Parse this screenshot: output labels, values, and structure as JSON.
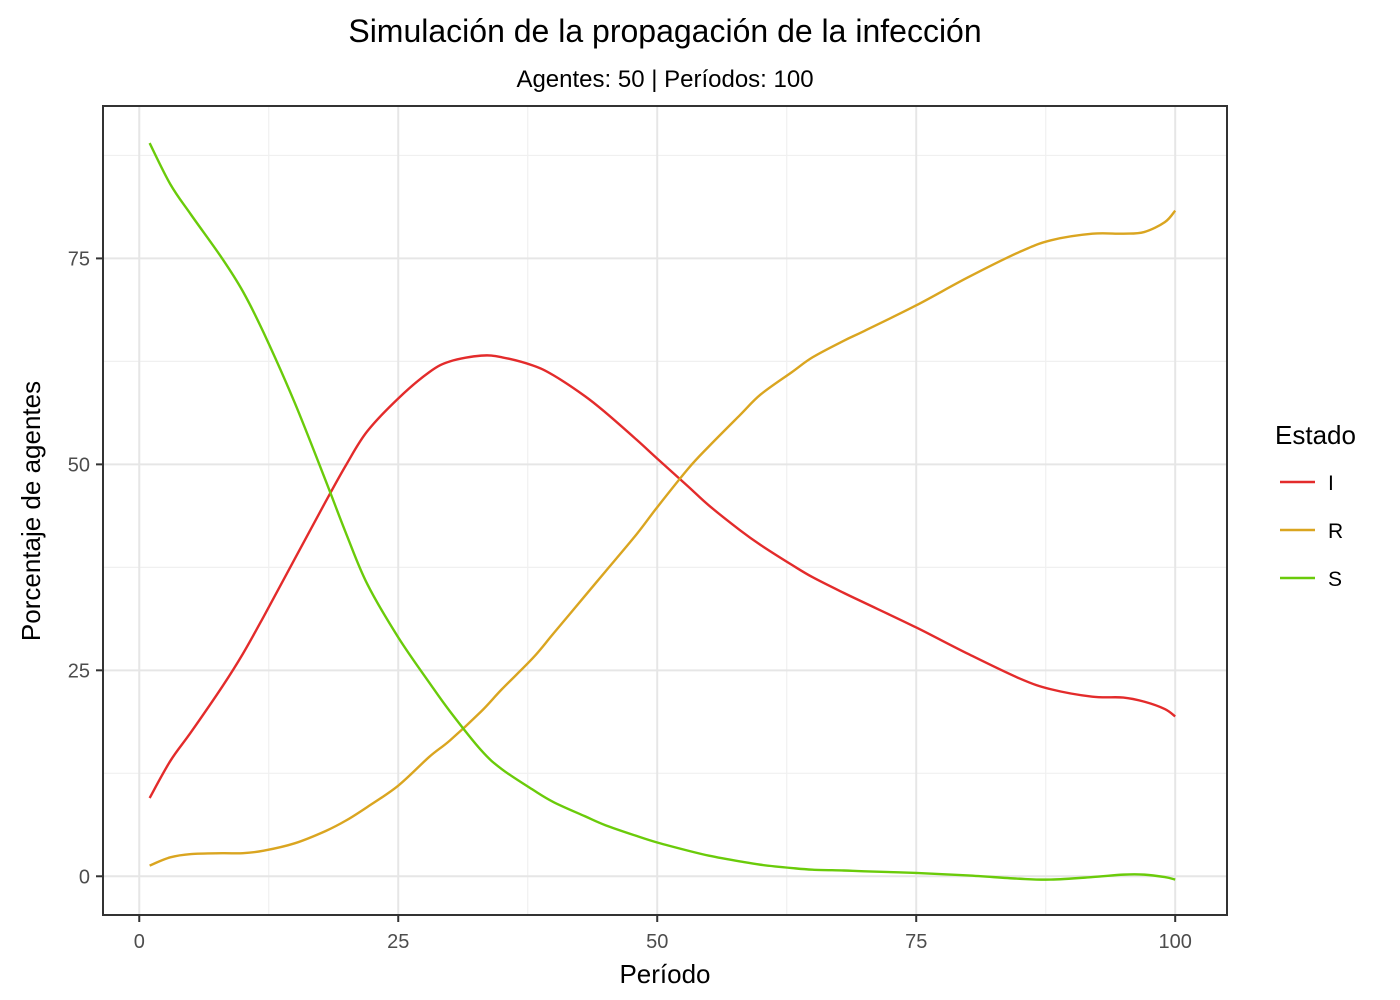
{
  "chart_data": {
    "type": "line",
    "title": "Simulación de la propagación de la infección",
    "subtitle": "Agentes: 50 | Períodos: 100",
    "xlabel": "Período",
    "ylabel": "Porcentaje de agentes",
    "xlim": [
      -3.5,
      105
    ],
    "ylim": [
      -4.7,
      93.5
    ],
    "xticks": [
      0,
      25,
      50,
      75,
      100
    ],
    "yticks": [
      0,
      25,
      50,
      75
    ],
    "grid": true,
    "legend": {
      "title": "Estado",
      "position": "right"
    },
    "series": [
      {
        "name": "I",
        "color": "#e32b2b",
        "x": [
          1,
          3,
          5,
          8,
          10,
          12,
          15,
          18,
          20,
          22,
          25,
          28,
          30,
          33,
          35,
          38,
          40,
          43,
          45,
          48,
          50,
          53,
          55,
          58,
          60,
          63,
          65,
          68,
          70,
          75,
          80,
          85,
          88,
          92,
          95,
          97,
          99,
          100
        ],
        "y": [
          9.5,
          14,
          17.5,
          23,
          27,
          31.5,
          38.5,
          45.5,
          50,
          54,
          58,
          61.2,
          62.5,
          63.2,
          63,
          62,
          60.8,
          58.3,
          56.3,
          53,
          50.7,
          47.3,
          45,
          42,
          40.2,
          37.8,
          36.3,
          34.4,
          33.2,
          30.2,
          27,
          24,
          22.7,
          21.8,
          21.7,
          21.2,
          20.3,
          19.4
        ]
      },
      {
        "name": "R",
        "color": "#daa520",
        "x": [
          1,
          3,
          5,
          8,
          10,
          12,
          15,
          18,
          20,
          22,
          25,
          28,
          30,
          33,
          35,
          38,
          40,
          43,
          45,
          48,
          50,
          53,
          55,
          58,
          60,
          63,
          65,
          68,
          70,
          75,
          80,
          85,
          88,
          92,
          95,
          97,
          99,
          100
        ],
        "y": [
          1.3,
          2.3,
          2.7,
          2.8,
          2.8,
          3.1,
          4,
          5.5,
          6.8,
          8.4,
          11,
          14.5,
          16.5,
          20,
          22.7,
          26.5,
          29.5,
          34,
          37,
          41.5,
          44.8,
          49.5,
          52.2,
          56,
          58.5,
          61.2,
          63,
          65,
          66.2,
          69.3,
          72.7,
          75.8,
          77.2,
          78,
          78,
          78.2,
          79.4,
          80.8
        ]
      },
      {
        "name": "S",
        "color": "#6acb0a",
        "x": [
          1,
          3,
          5,
          8,
          10,
          12,
          15,
          18,
          20,
          22,
          25,
          28,
          30,
          33,
          35,
          38,
          40,
          43,
          45,
          48,
          50,
          53,
          55,
          58,
          60,
          63,
          65,
          68,
          70,
          75,
          80,
          85,
          88,
          92,
          95,
          97,
          99,
          100
        ],
        "y": [
          89,
          84,
          80.3,
          75,
          71,
          66,
          57.5,
          48,
          41.5,
          35.5,
          29,
          23.5,
          20,
          15.3,
          13,
          10.5,
          9,
          7.3,
          6.2,
          4.9,
          4.1,
          3.1,
          2.5,
          1.8,
          1.4,
          1,
          0.8,
          0.7,
          0.6,
          0.4,
          0.1,
          -0.3,
          -0.4,
          -0.1,
          0.2,
          0.2,
          -0.1,
          -0.4
        ]
      }
    ]
  }
}
